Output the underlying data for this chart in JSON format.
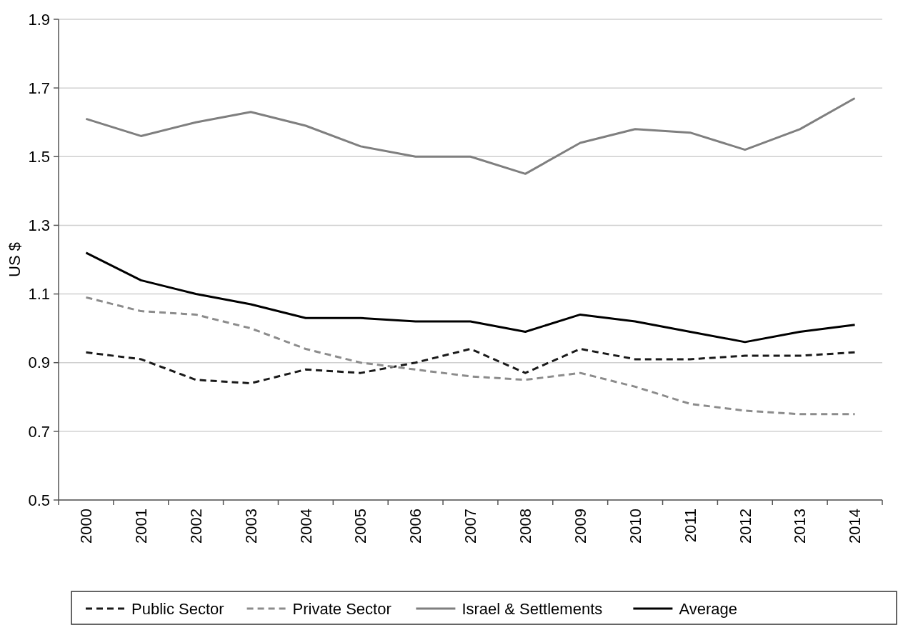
{
  "chart_data": {
    "type": "line",
    "ylabel": "US $",
    "categories": [
      "2000",
      "2001",
      "2002",
      "2003",
      "2004",
      "2005",
      "2006",
      "2007",
      "2008",
      "2009",
      "2010",
      "2011",
      "2012",
      "2013",
      "2014"
    ],
    "ylim": [
      0.5,
      1.9
    ],
    "yticks": [
      {
        "value": 0.5,
        "label": "0.5"
      },
      {
        "value": 0.7,
        "label": "0.7"
      },
      {
        "value": 0.9,
        "label": "0.9"
      },
      {
        "value": 1.1,
        "label": "1.1"
      },
      {
        "value": 1.3,
        "label": "1.3"
      },
      {
        "value": 1.5,
        "label": "1.5"
      },
      {
        "value": 1.7,
        "label": "1.7"
      },
      {
        "value": 1.9,
        "label": "1.9"
      }
    ],
    "grid": "y",
    "legend": "bottom",
    "marker": "none",
    "series": [
      {
        "name": "Public Sector",
        "color": "#1a1a1a",
        "line_style": "dashed",
        "values": [
          0.93,
          0.91,
          0.85,
          0.84,
          0.88,
          0.87,
          0.9,
          0.94,
          0.87,
          0.94,
          0.91,
          0.91,
          0.92,
          0.92,
          0.93
        ]
      },
      {
        "name": "Private Sector",
        "color": "#8c8c8c",
        "line_style": "dashed",
        "values": [
          1.09,
          1.05,
          1.04,
          1.0,
          0.94,
          0.9,
          0.88,
          0.86,
          0.85,
          0.87,
          0.83,
          0.78,
          0.76,
          0.75,
          0.75
        ]
      },
      {
        "name": "Israel & Settlements",
        "color": "#7f7f7f",
        "line_style": "solid",
        "values": [
          1.61,
          1.56,
          1.6,
          1.63,
          1.59,
          1.53,
          1.5,
          1.5,
          1.45,
          1.54,
          1.58,
          1.57,
          1.52,
          1.58,
          1.67
        ]
      },
      {
        "name": "Average",
        "color": "#000000",
        "line_style": "solid",
        "values": [
          1.22,
          1.14,
          1.1,
          1.07,
          1.03,
          1.03,
          1.02,
          1.02,
          0.99,
          1.04,
          1.02,
          0.99,
          0.96,
          0.99,
          1.01
        ]
      }
    ]
  }
}
